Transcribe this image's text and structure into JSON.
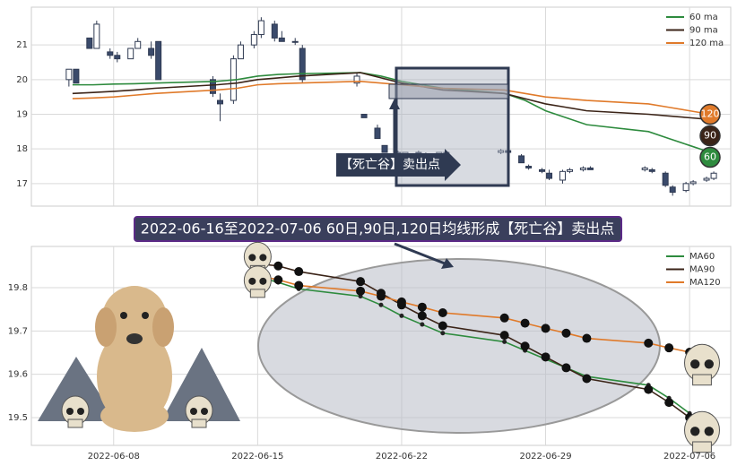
{
  "chart_data": [
    {
      "type": "candlestick",
      "xlim": [
        "2022-06-04",
        "2022-07-08"
      ],
      "xticks": [
        "2022-06-08",
        "2022-06-15",
        "2022-06-22",
        "2022-06-29",
        "2022-07-06"
      ],
      "ylim": [
        16.35,
        22.09
      ],
      "yticks": [
        17,
        18,
        19,
        20,
        21
      ],
      "grid": true,
      "legend": "upper right",
      "annotation": "【死亡谷】卖出点",
      "candles": {
        "x": [
          "2022-06-06",
          "2022-06-06",
          "2022-06-07",
          "2022-06-07",
          "2022-06-08",
          "2022-06-08",
          "2022-06-09",
          "2022-06-09",
          "2022-06-10",
          "2022-06-10",
          "2022-06-13",
          "2022-06-13",
          "2022-06-14",
          "2022-06-14",
          "2022-06-15",
          "2022-06-15",
          "2022-06-16",
          "2022-06-16",
          "2022-06-17",
          "2022-06-17",
          "2022-06-20",
          "2022-06-20",
          "2022-06-21",
          "2022-06-21",
          "2022-06-22",
          "2022-06-22",
          "2022-06-23",
          "2022-06-23",
          "2022-06-24",
          "2022-06-24",
          "2022-06-27",
          "2022-06-27",
          "2022-06-28",
          "2022-06-28",
          "2022-06-29",
          "2022-06-29",
          "2022-06-30",
          "2022-06-30",
          "2022-07-01",
          "2022-07-01",
          "2022-07-04",
          "2022-07-04",
          "2022-07-05",
          "2022-07-05",
          "2022-07-06",
          "2022-07-06",
          "2022-07-07",
          "2022-07-07"
        ],
        "open": [
          20.0,
          20.3,
          21.2,
          20.9,
          20.8,
          20.7,
          20.6,
          20.9,
          20.9,
          21.1,
          20.0,
          19.4,
          19.4,
          20.6,
          21.0,
          21.3,
          21.6,
          21.2,
          21.1,
          20.9,
          19.9,
          19.0,
          18.6,
          18.1,
          17.9,
          17.85,
          17.9,
          17.8,
          17.85,
          17.9,
          17.9,
          17.95,
          17.8,
          17.5,
          17.4,
          17.3,
          17.1,
          17.35,
          17.4,
          17.45,
          17.4,
          17.4,
          17.3,
          16.9,
          16.8,
          17.0,
          17.1,
          17.15
        ],
        "high": [
          20.3,
          20.3,
          21.2,
          21.7,
          20.9,
          20.8,
          20.9,
          21.2,
          21.1,
          21.1,
          20.1,
          19.6,
          20.7,
          21.1,
          21.4,
          21.8,
          21.7,
          21.4,
          21.2,
          21.0,
          20.2,
          19.0,
          18.7,
          18.1,
          17.95,
          17.9,
          17.95,
          17.9,
          17.9,
          17.95,
          18.0,
          18.05,
          17.85,
          17.55,
          17.45,
          17.4,
          17.4,
          17.45,
          17.5,
          17.5,
          17.5,
          17.45,
          17.35,
          16.95,
          17.05,
          17.1,
          17.2,
          17.35
        ],
        "low": [
          19.8,
          19.9,
          20.9,
          20.9,
          20.6,
          20.5,
          20.6,
          20.9,
          20.6,
          20.0,
          19.5,
          18.8,
          19.3,
          20.6,
          20.9,
          21.2,
          21.1,
          21.1,
          21.0,
          19.9,
          19.8,
          18.9,
          18.3,
          17.9,
          17.85,
          17.8,
          17.8,
          17.7,
          17.8,
          17.85,
          17.85,
          17.9,
          17.6,
          17.4,
          17.3,
          17.1,
          17.0,
          17.3,
          17.35,
          17.4,
          17.35,
          17.3,
          16.9,
          16.65,
          16.75,
          16.95,
          17.05,
          17.1
        ],
        "close": [
          20.3,
          19.9,
          20.9,
          21.6,
          20.7,
          20.6,
          20.9,
          21.1,
          20.7,
          20.0,
          19.6,
          19.3,
          20.6,
          21.0,
          21.3,
          21.7,
          21.2,
          21.1,
          21.1,
          20.0,
          20.1,
          18.9,
          18.3,
          17.9,
          17.85,
          17.9,
          17.8,
          17.85,
          17.9,
          17.9,
          17.95,
          17.9,
          17.6,
          17.45,
          17.35,
          17.15,
          17.35,
          17.4,
          17.45,
          17.4,
          17.45,
          17.35,
          16.95,
          16.75,
          17.0,
          17.05,
          17.15,
          17.3
        ]
      },
      "x": [
        "2022-06-06",
        "2022-06-07",
        "2022-06-08",
        "2022-06-09",
        "2022-06-10",
        "2022-06-13",
        "2022-06-14",
        "2022-06-15",
        "2022-06-16",
        "2022-06-17",
        "2022-06-20",
        "2022-06-21",
        "2022-06-22",
        "2022-06-23",
        "2022-06-24",
        "2022-06-27",
        "2022-06-28",
        "2022-06-29",
        "2022-06-30",
        "2022-07-01",
        "2022-07-04",
        "2022-07-05",
        "2022-07-06",
        "2022-07-07"
      ],
      "series": [
        {
          "name": "60 ma",
          "label": "60",
          "color": "#2e8b3e",
          "values": [
            19.85,
            19.85,
            19.87,
            19.88,
            19.9,
            19.95,
            20.0,
            20.1,
            20.15,
            20.17,
            20.2,
            20.1,
            19.95,
            19.85,
            19.75,
            19.6,
            19.4,
            19.1,
            18.9,
            18.7,
            18.5,
            18.3,
            18.1,
            17.9
          ]
        },
        {
          "name": "90 ma",
          "label": "90",
          "color": "#3b2418",
          "values": [
            19.6,
            19.63,
            19.66,
            19.7,
            19.75,
            19.85,
            19.9,
            20.0,
            20.05,
            20.1,
            20.2,
            20.05,
            19.9,
            19.8,
            19.7,
            19.6,
            19.45,
            19.3,
            19.2,
            19.1,
            19.0,
            18.95,
            18.9,
            18.85
          ]
        },
        {
          "name": "120 ma",
          "label": "120",
          "color": "#e07a2a",
          "values": [
            19.45,
            19.47,
            19.5,
            19.55,
            19.6,
            19.7,
            19.75,
            19.85,
            19.88,
            19.9,
            19.95,
            19.9,
            19.85,
            19.8,
            19.75,
            19.7,
            19.6,
            19.5,
            19.45,
            19.4,
            19.3,
            19.2,
            19.1,
            19.0
          ]
        }
      ]
    },
    {
      "type": "line",
      "title": "2022-06-16至2022-07-06 60日,90日,120日均线形成【死亡谷】卖出点",
      "xlim": [
        "2022-06-04",
        "2022-07-08"
      ],
      "xticks": [
        "2022-06-08",
        "2022-06-15",
        "2022-06-22",
        "2022-06-29",
        "2022-07-06"
      ],
      "ylim": [
        19.436,
        19.895
      ],
      "yticks": [
        19.5,
        19.6,
        19.7,
        19.8
      ],
      "grid": true,
      "legend": "upper right",
      "x": [
        "2022-06-15",
        "2022-06-16",
        "2022-06-17",
        "2022-06-20",
        "2022-06-21",
        "2022-06-22",
        "2022-06-23",
        "2022-06-24",
        "2022-06-27",
        "2022-06-28",
        "2022-06-29",
        "2022-06-30",
        "2022-07-01",
        "2022-07-04",
        "2022-07-05",
        "2022-07-06",
        "2022-07-07"
      ],
      "series": [
        {
          "name": "MA60",
          "color": "#2e8b3e",
          "marker": "small",
          "values": [
            19.825,
            19.812,
            19.797,
            19.78,
            19.76,
            19.735,
            19.715,
            19.695,
            19.675,
            19.655,
            19.635,
            19.615,
            19.595,
            19.575,
            19.545,
            19.51,
            19.465
          ]
        },
        {
          "name": "MA90",
          "color": "#3b2418",
          "marker": "large",
          "values": [
            19.855,
            19.85,
            19.837,
            19.814,
            19.787,
            19.76,
            19.735,
            19.712,
            19.69,
            19.665,
            19.64,
            19.615,
            19.59,
            19.565,
            19.535,
            19.5,
            19.47
          ]
        },
        {
          "name": "MA120",
          "color": "#e07a2a",
          "marker": "large",
          "values": [
            19.828,
            19.818,
            19.805,
            19.792,
            19.78,
            19.767,
            19.755,
            19.742,
            19.73,
            19.718,
            19.706,
            19.695,
            19.683,
            19.672,
            19.661,
            19.651,
            19.641
          ]
        }
      ]
    }
  ]
}
